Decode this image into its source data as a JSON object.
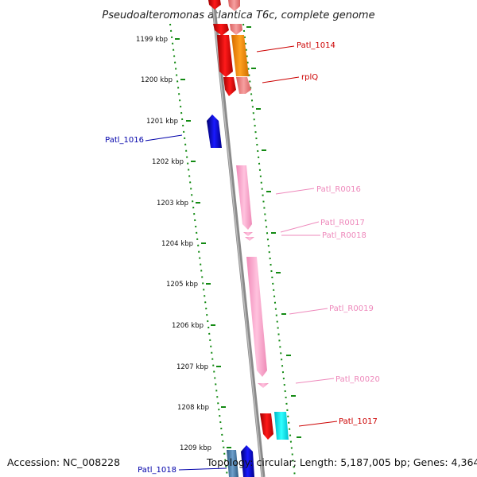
{
  "title": "Pseudoalteromonas atlantica T6c, complete genome",
  "footer": {
    "accession": "Accession: NC_008228",
    "summary": "Topology: circular; Length: 5,187,005 bp; Genes: 4,364"
  },
  "scale_ticks": [
    "1199 kbp",
    "1200 kbp",
    "1201 kbp",
    "1202 kbp",
    "1203 kbp",
    "1204 kbp",
    "1205 kbp",
    "1206 kbp",
    "1207 kbp",
    "1208 kbp",
    "1209 kbp"
  ],
  "genes": [
    {
      "label": "Patl_1014",
      "color": "#cc0000"
    },
    {
      "label": "rplQ",
      "color": "#cc0000"
    },
    {
      "label": "Patl_1016",
      "color": "#0000aa"
    },
    {
      "label": "Patl_R0016",
      "color": "#ee88bb"
    },
    {
      "label": "Patl_R0017",
      "color": "#ee88bb"
    },
    {
      "label": "Patl_R0018",
      "color": "#ee88bb"
    },
    {
      "label": "Patl_R0019",
      "color": "#ee88bb"
    },
    {
      "label": "Patl_R0020",
      "color": "#ee88bb"
    },
    {
      "label": "Patl_1017",
      "color": "#cc0000"
    },
    {
      "label": "Patl_1018",
      "color": "#0000aa"
    }
  ]
}
